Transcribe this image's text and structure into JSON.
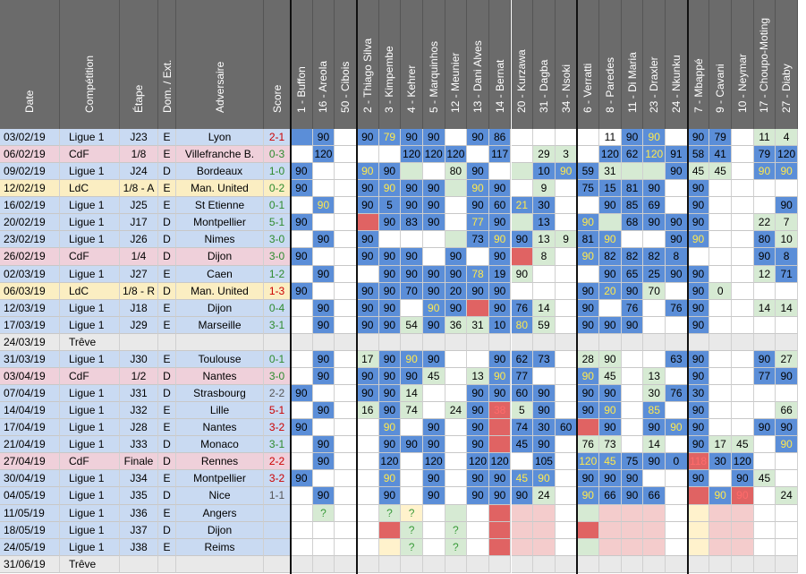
{
  "headers": {
    "info": [
      "Date",
      "Compétition",
      "Étape",
      "Dom. / Ext.",
      "Adversaire",
      "Score"
    ],
    "players": [
      "1 - Buffon",
      "16 - Areola",
      "50 - Cibois",
      "2 - Thiago Silva",
      "3 - Kimpembe",
      "4 - Kehrer",
      "5 - Marquinhos",
      "12 - Meunier",
      "13 - Dani Alves",
      "14 - Bernat",
      "20 - Kurzawa",
      "31 - Dagba",
      "34 - Nsoki",
      "6 - Verratti",
      "8 - Paredes",
      "11 - Di Maria",
      "23 - Draxler",
      "24 - Nkunku",
      "7 - Mbappé",
      "9 - Cavani",
      "10 - Neymar",
      "17 - Choupo-Moting",
      "27 - Diaby"
    ]
  },
  "colors": {
    "header_bg": "#6b6b6b",
    "row_default": "#c9daf2",
    "row_cdf": "#efd0da",
    "row_ldc": "#fbeec2",
    "row_treve": "#e9e9e9",
    "score_win": "#2e8b2e",
    "score_draw": "#555555",
    "score_loss": "#cc0000",
    "cell_blue": "#5b8ed8",
    "cell_green": "#d6ead3",
    "cell_red": "#e06363",
    "cell_pink": "#f4cccc",
    "cell_yellow": "#fff2cc",
    "cell_white": "#ffffff",
    "text_yellow": "#ffe94d",
    "text_red": "#ff6b6b"
  },
  "rows": [
    {
      "info": [
        "03/02/19",
        "Ligue 1",
        "J23",
        "E",
        "Lyon",
        "2-1"
      ],
      "type": "l1",
      "res": "loss",
      "cells": [
        "b",
        "b:90",
        "w",
        "b:90",
        "b:79:y",
        "b:90",
        "b:90",
        "",
        "b:90",
        "b:86",
        "",
        "w",
        "",
        "",
        ":11",
        "b:90",
        "b:90:y",
        "",
        "b:90",
        "b:79",
        "",
        "g:11",
        "g:4"
      ]
    },
    {
      "info": [
        "06/02/19",
        "CdF",
        "1/8",
        "E",
        "Villefranche B.",
        "0-3"
      ],
      "type": "cdf",
      "res": "win",
      "cells": [
        "",
        "b:120",
        "w",
        "",
        "",
        "b:120",
        "b:120",
        "b:120",
        "",
        "b:117",
        "",
        "g:29",
        "g:3",
        "",
        "b:120",
        "b:62",
        "b:120:y",
        "b:91",
        "b:58",
        "b:41",
        "",
        "b:79",
        "b:120"
      ]
    },
    {
      "info": [
        "09/02/19",
        "Ligue 1",
        "J24",
        "D",
        "Bordeaux",
        "1-0"
      ],
      "type": "l1",
      "res": "win",
      "cells": [
        "b:90",
        "",
        "w",
        "b:90:y",
        "b:90",
        "g",
        "",
        "g:80",
        "b:90",
        "",
        "g",
        "b:10",
        "b:90:y",
        "b:59",
        "g:31",
        "g",
        "g",
        "b:90",
        "g:45",
        "g:45",
        "",
        "b:90:y",
        "b:90:y"
      ]
    },
    {
      "info": [
        "12/02/19",
        "LdC",
        "1/8 - A",
        "E",
        "Man. United",
        "0-2"
      ],
      "type": "ldc",
      "res": "win",
      "cells": [
        "b:90",
        "",
        "w",
        "b:90",
        "b:90:y",
        "b:90",
        "b:90",
        "g",
        "b:90:y",
        "b:90",
        "",
        "g:9",
        "",
        "b:75",
        "b:15",
        "b:81",
        "b:90",
        "",
        "b:90",
        "",
        "",
        "",
        ""
      ]
    },
    {
      "info": [
        "16/02/19",
        "Ligue 1",
        "J25",
        "E",
        "St Etienne",
        "0-1"
      ],
      "type": "l1",
      "res": "win",
      "cells": [
        "",
        "b:90:y",
        "w",
        "b:90",
        "b:5",
        "b:90",
        "b:90",
        "",
        "b:90",
        "b:60",
        "b:21:y",
        "b:30",
        "",
        "",
        "b:90",
        "b:85",
        "b:69",
        "",
        "b:90",
        "",
        "",
        "",
        "b:90"
      ]
    },
    {
      "info": [
        "20/02/19",
        "Ligue 1",
        "J17",
        "D",
        "Montpellier",
        "5-1"
      ],
      "type": "l1",
      "res": "win",
      "cells": [
        "b:90",
        "",
        "w",
        "r",
        "b:90",
        "b:83",
        "b:90",
        "",
        "b:77:y",
        "b:90",
        "g",
        "b:13",
        "",
        "b:90:y",
        "g",
        "b:68",
        "b:90",
        "b:90",
        "b:90",
        "",
        "",
        "g:22",
        "g:7"
      ]
    },
    {
      "info": [
        "23/02/19",
        "Ligue 1",
        "J26",
        "D",
        "Nimes",
        "3-0"
      ],
      "type": "l1",
      "res": "win",
      "cells": [
        "",
        "b:90",
        "w",
        "b:90",
        "",
        "",
        "",
        "g",
        "b:73",
        "b:90:y",
        "b:90",
        "g:13",
        "g:9",
        "b:81",
        "b:90:y",
        "",
        "",
        "b:90",
        "b:90:y",
        "",
        "",
        "b:80",
        "g:10"
      ]
    },
    {
      "info": [
        "26/02/19",
        "CdF",
        "1/4",
        "D",
        "Dijon",
        "3-0"
      ],
      "type": "cdf",
      "res": "win",
      "cells": [
        "b:90",
        "",
        "w",
        "b:90",
        "b:90",
        "b:90",
        "",
        "b:90",
        "",
        "b:90",
        "r",
        "g:8",
        "",
        "b:90:y",
        "b:82",
        "b:82",
        "b:82",
        "b:8",
        "",
        "",
        "",
        "b:90",
        "b:8"
      ]
    },
    {
      "info": [
        "02/03/19",
        "Ligue 1",
        "J27",
        "E",
        "Caen",
        "1-2"
      ],
      "type": "l1",
      "res": "win",
      "cells": [
        "",
        "b:90",
        "w",
        "",
        "b:90",
        "b:90",
        "b:90",
        "b:90",
        "b:78:y",
        "b:19",
        "g:90",
        "",
        "",
        "",
        "b:90",
        "b:65",
        "b:25",
        "b:90",
        "b:90",
        "",
        "",
        "g:12",
        "b:71"
      ]
    },
    {
      "info": [
        "06/03/19",
        "LdC",
        "1/8 - R",
        "D",
        "Man. United",
        "1-3"
      ],
      "type": "ldc",
      "res": "loss",
      "cells": [
        "b:90",
        "",
        "w",
        "b:90",
        "b:90",
        "b:70",
        "b:90",
        "b:20",
        "b:90",
        "b:90",
        "",
        "",
        "",
        "b:90",
        "b:20:y",
        "b:90",
        "g:70",
        "",
        "b:90",
        "g:0",
        "",
        "",
        ""
      ]
    },
    {
      "info": [
        "12/03/19",
        "Ligue 1",
        "J18",
        "E",
        "Dijon",
        "0-4"
      ],
      "type": "l1",
      "res": "win",
      "cells": [
        "",
        "b:90",
        "w",
        "b:90",
        "b:90",
        "",
        "b:90:y",
        "b:90",
        "r",
        "b:90",
        "b:76",
        "g:14",
        "",
        "b:90",
        "",
        "b:76",
        "",
        "b:76",
        "b:90",
        "",
        "",
        "g:14",
        "g:14"
      ]
    },
    {
      "info": [
        "17/03/19",
        "Ligue 1",
        "J29",
        "E",
        "Marseille",
        "3-1"
      ],
      "type": "l1",
      "res": "win",
      "cells": [
        "",
        "b:90",
        "w",
        "b:90",
        "b:90",
        "g:54",
        "b:90",
        "g:36",
        "g:31",
        "b:10",
        "b:80:y",
        "g:59",
        "",
        "b:90",
        "b:90",
        "b:90",
        "",
        "",
        "b:90",
        "",
        "",
        "",
        ""
      ]
    },
    {
      "info": [
        "24/03/19",
        "Trêve",
        "",
        "",
        "",
        ""
      ],
      "type": "treve",
      "res": "none",
      "cells": [
        "",
        "",
        "",
        "",
        "",
        "",
        "",
        "",
        "",
        "",
        "",
        "",
        "",
        "",
        "",
        "",
        "",
        "",
        "",
        "",
        "",
        "",
        ""
      ]
    },
    {
      "info": [
        "31/03/19",
        "Ligue 1",
        "J30",
        "E",
        "Toulouse",
        "0-1"
      ],
      "type": "l1",
      "res": "win",
      "cells": [
        "",
        "b:90",
        "w",
        "g:17",
        "b:90",
        "b:90:y",
        "b:90",
        "",
        "",
        "b:90",
        "b:62",
        "b:73",
        "",
        "g:28",
        "g:90",
        "",
        "",
        "b:63",
        "b:90",
        "",
        "",
        "b:90",
        "g:27"
      ]
    },
    {
      "info": [
        "03/04/19",
        "CdF",
        "1/2",
        "D",
        "Nantes",
        "3-0"
      ],
      "type": "cdf",
      "res": "win",
      "cells": [
        "",
        "b:90",
        "w",
        "b:90",
        "b:90",
        "b:90",
        "g:45",
        "",
        "g:13",
        "b:90:y",
        "b:77",
        "",
        "",
        "b:90:y",
        "g:45",
        "",
        "g:13",
        "",
        "b:90",
        "",
        "",
        "b:77",
        "b:90"
      ]
    },
    {
      "info": [
        "07/04/19",
        "Ligue 1",
        "J31",
        "D",
        "Strasbourg",
        "2-2"
      ],
      "type": "l1",
      "res": "draw",
      "cells": [
        "b:90",
        "",
        "w",
        "b:90",
        "b:90",
        "g:14",
        "",
        "",
        "b:90",
        "b:90",
        "b:60",
        "b:90",
        "",
        "b:90",
        "b:90",
        "",
        "g:30",
        "b:76",
        "b:30",
        "",
        "",
        "",
        ""
      ]
    },
    {
      "info": [
        "14/04/19",
        "Ligue 1",
        "J32",
        "E",
        "Lille",
        "5-1"
      ],
      "type": "l1",
      "res": "loss",
      "cells": [
        "",
        "b:90",
        "w",
        "g:16",
        "b:90",
        "g:74",
        "",
        "g:24",
        "b:90",
        "r:38:r",
        "g:5",
        "b:90",
        "",
        "b:90",
        "b:90:y",
        "",
        "b:85:y",
        "",
        "b:90",
        "",
        "",
        "",
        "g:66"
      ]
    },
    {
      "info": [
        "17/04/19",
        "Ligue 1",
        "J28",
        "E",
        "Nantes",
        "3-2"
      ],
      "type": "l1",
      "res": "loss",
      "cells": [
        "b:90",
        "",
        "w",
        "",
        "b:90:y",
        "",
        "b:90",
        "",
        "b:90",
        "r",
        "b:74",
        "b:30",
        "b:60",
        "r",
        "b:90",
        "",
        "b:90",
        "b:90:y",
        "b:90",
        "",
        "",
        "b:90",
        "b:90"
      ]
    },
    {
      "info": [
        "21/04/19",
        "Ligue 1",
        "J33",
        "D",
        "Monaco",
        "3-1"
      ],
      "type": "l1",
      "res": "win",
      "cells": [
        "",
        "b:90",
        "w",
        "",
        "b:90",
        "b:90",
        "b:90",
        "",
        "b:90",
        "r",
        "b:45",
        "b:90",
        "",
        "g:76",
        "g:73",
        "",
        "g:14",
        "",
        "b:90",
        "g:17",
        "g:45",
        "",
        "b:90:y"
      ]
    },
    {
      "info": [
        "27/04/19",
        "CdF",
        "Finale",
        "D",
        "Rennes",
        "2-2"
      ],
      "type": "cdf",
      "res": "loss",
      "cells": [
        "",
        "b:90",
        "w",
        "",
        "b:120",
        "",
        "b:120",
        "",
        "b:120",
        "b:120",
        "",
        "b:105",
        "",
        "b:120:y",
        "b:45:y",
        "b:75",
        "b:90",
        "b:0",
        "r:118:r",
        "b:30",
        "b:120",
        "",
        ""
      ]
    },
    {
      "info": [
        "30/04/19",
        "Ligue 1",
        "J34",
        "E",
        "Montpellier",
        "3-2"
      ],
      "type": "l1",
      "res": "loss",
      "cells": [
        "b:90",
        "",
        "w",
        "",
        "b:90:y",
        "",
        "b:90",
        "",
        "b:90",
        "b:90",
        "b:45:y",
        "b:90:y",
        "",
        "b:90",
        "b:90",
        "b:90",
        "",
        "",
        "b:90",
        "",
        "b:90",
        "g:45",
        ""
      ]
    },
    {
      "info": [
        "04/05/19",
        "Ligue 1",
        "J35",
        "D",
        "Nice",
        "1-1"
      ],
      "type": "l1",
      "res": "draw",
      "cells": [
        "",
        "b:90",
        "w",
        "",
        "b:90",
        "",
        "b:90",
        "",
        "b:90",
        "b:90",
        "b:90",
        "g:24",
        "",
        "b:90:y",
        "b:66",
        "b:90",
        "b:66",
        "",
        "r",
        "b:90:y",
        "r:90:r",
        "",
        "g:24"
      ]
    },
    {
      "info": [
        "11/05/19",
        "Ligue 1",
        "J36",
        "E",
        "Angers",
        ""
      ],
      "type": "l1",
      "res": "none",
      "cells": [
        "",
        "g:?",
        "w",
        "",
        "g:?",
        "y:?",
        "",
        "g",
        "",
        "r",
        "p",
        "p",
        "",
        "g",
        "p",
        "p",
        "p",
        "",
        "y",
        "p",
        "p",
        "",
        ""
      ]
    },
    {
      "info": [
        "18/05/19",
        "Ligue 1",
        "J37",
        "D",
        "Dijon",
        ""
      ],
      "type": "l1",
      "res": "none",
      "cells": [
        "",
        "",
        "w",
        "",
        "r",
        "g:?",
        "",
        "g:?",
        "",
        "r",
        "p",
        "p",
        "",
        "r",
        "p",
        "p",
        "p",
        "",
        "y",
        "p",
        "p",
        "",
        ""
      ]
    },
    {
      "info": [
        "24/05/19",
        "Ligue 1",
        "J38",
        "E",
        "Reims",
        ""
      ],
      "type": "l1",
      "res": "none",
      "cells": [
        "",
        "",
        "w",
        "",
        "y",
        "g:?",
        "",
        "g:?",
        "",
        "r",
        "p",
        "p",
        "",
        "g",
        "p",
        "p",
        "p",
        "",
        "y",
        "p",
        "p",
        "",
        ""
      ]
    },
    {
      "info": [
        "31/06/19",
        "Trêve",
        "",
        "",
        "",
        ""
      ],
      "type": "treve",
      "res": "none",
      "cells": [
        "",
        "",
        "",
        "",
        "",
        "",
        "",
        "",
        "",
        "",
        "",
        "",
        "",
        "",
        "",
        "",
        "",
        "",
        "",
        "",
        "",
        "",
        ""
      ]
    }
  ]
}
